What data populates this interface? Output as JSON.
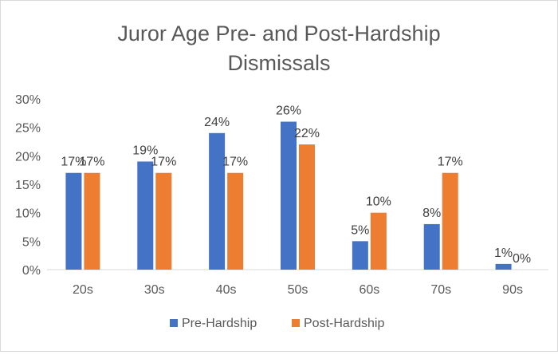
{
  "chart_data": {
    "type": "bar",
    "title_lines": [
      "Juror Age Pre- and Post-Hardship",
      "Dismissals"
    ],
    "categories": [
      "20s",
      "30s",
      "40s",
      "50s",
      "60s",
      "70s",
      "90s"
    ],
    "series": [
      {
        "name": "Pre-Hardship",
        "color": "#4472C4",
        "values": [
          17,
          19,
          24,
          26,
          5,
          8,
          1
        ],
        "labels": [
          "17%",
          "19%",
          "24%",
          "26%",
          "5%",
          "8%",
          "1%"
        ]
      },
      {
        "name": "Post-Hardship",
        "color": "#ED7D31",
        "values": [
          17,
          17,
          17,
          22,
          10,
          17,
          0
        ],
        "labels": [
          "17%",
          "17%",
          "17%",
          "22%",
          "10%",
          "17%",
          "0%"
        ]
      }
    ],
    "ylim": [
      0,
      30
    ],
    "yticks": [
      0,
      5,
      10,
      15,
      20,
      25,
      30
    ],
    "ytick_labels": [
      "0%",
      "5%",
      "10%",
      "15%",
      "20%",
      "25%",
      "30%"
    ],
    "grid": false,
    "legend_position": "bottom"
  }
}
